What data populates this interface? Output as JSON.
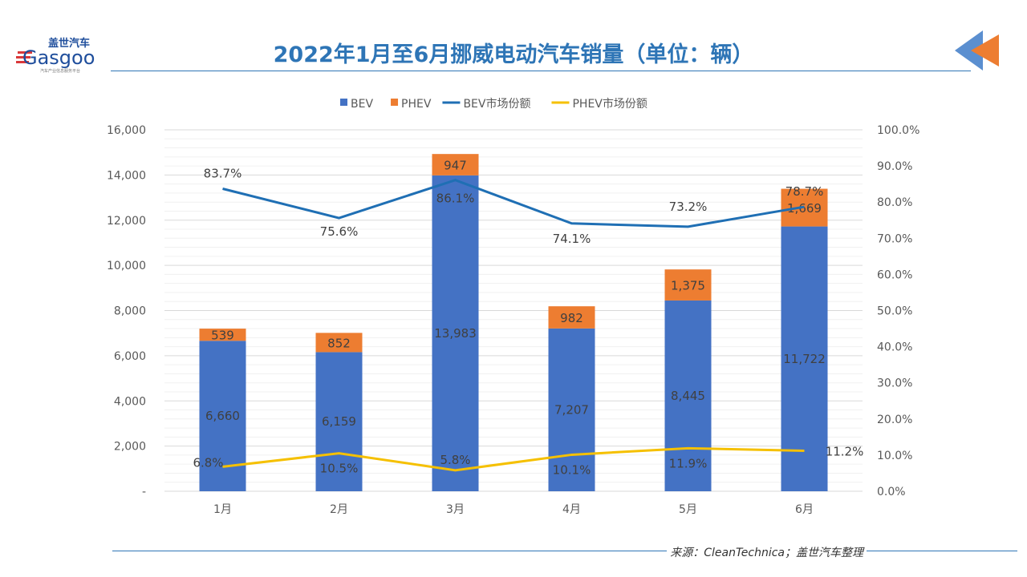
{
  "title": "2022年1月至6月挪威电动汽车销量（单位：辆）",
  "logo": {
    "cn": "盖世汽车",
    "en": "Gasgoo",
    "tagline": "汽车产业信息服务平台"
  },
  "source": "来源：CleanTechnica；盖世汽车整理",
  "chart_data": {
    "type": "bar",
    "stacked": true,
    "categories": [
      "1月",
      "2月",
      "3月",
      "4月",
      "5月",
      "6月"
    ],
    "series": [
      {
        "name": "BEV",
        "type": "bar",
        "axis": "left",
        "color": "#4472c4",
        "values": [
          6660,
          6159,
          13983,
          7207,
          8445,
          11722
        ],
        "labels": [
          "6,660",
          "6,159",
          "13,983",
          "7,207",
          "8,445",
          "11,722"
        ]
      },
      {
        "name": "PHEV",
        "type": "bar",
        "axis": "left",
        "color": "#ed7d31",
        "values": [
          539,
          852,
          947,
          982,
          1375,
          1669
        ],
        "labels": [
          "539",
          "852",
          "947",
          "982",
          "1,375",
          "1,669"
        ]
      },
      {
        "name": "BEV市场份额",
        "type": "line",
        "axis": "right",
        "color": "#1f6fb4",
        "values": [
          83.7,
          75.6,
          86.1,
          74.1,
          73.2,
          78.7
        ],
        "labels": [
          "83.7%",
          "75.6%",
          "86.1%",
          "74.1%",
          "73.2%",
          "78.7%"
        ]
      },
      {
        "name": "PHEV市场份额",
        "type": "line",
        "axis": "right",
        "color": "#f5c000",
        "values": [
          6.8,
          10.5,
          5.8,
          10.1,
          11.9,
          11.2
        ],
        "labels": [
          "6.8%",
          "10.5%",
          "5.8%",
          "10.1%",
          "11.9%",
          "11.2%"
        ]
      }
    ],
    "ylim": [
      0,
      16000
    ],
    "y_ticks": [
      "-",
      "2,000",
      "4,000",
      "6,000",
      "8,000",
      "10,000",
      "12,000",
      "14,000",
      "16,000"
    ],
    "y2lim": [
      0,
      100
    ],
    "y2_ticks": [
      "0.0%",
      "10.0%",
      "20.0%",
      "30.0%",
      "40.0%",
      "50.0%",
      "60.0%",
      "70.0%",
      "80.0%",
      "90.0%",
      "100.0%"
    ],
    "grid": true,
    "legend": "top"
  }
}
